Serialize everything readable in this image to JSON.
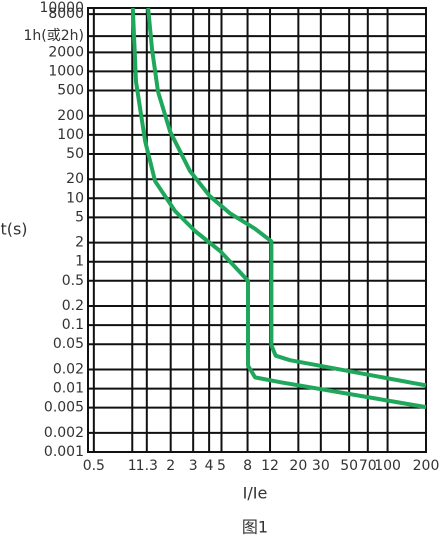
{
  "chart_data": {
    "type": "line",
    "x_label": "I/Ie",
    "y_label": "t(s)",
    "caption": "图1",
    "xscale": "log",
    "yscale": "log",
    "grid": true,
    "xlim": [
      0.45,
      200
    ],
    "ylim": [
      0.001,
      10000
    ],
    "xticks": [
      0.5,
      1,
      1.3,
      2,
      3,
      4,
      5,
      8,
      12,
      20,
      30,
      50,
      70,
      100,
      200
    ],
    "yticks": [
      10000,
      8000,
      {
        "value": 3600,
        "label": "1h(或2h)"
      },
      2000,
      1000,
      500,
      200,
      100,
      50,
      20,
      10,
      5,
      2,
      1,
      0.5,
      0.2,
      0.1,
      0.05,
      0.02,
      0.01,
      0.005,
      0.002,
      0.001
    ],
    "series": [
      {
        "color": "#1fa75b",
        "x": [
          1.01,
          1.07,
          1.26,
          1.51,
          2.16,
          3.1,
          4.87,
          8.07,
          8.07,
          9.16,
          14.4,
          200
        ],
        "values": [
          10000,
          690,
          80,
          18.6,
          6.3,
          3.05,
          1.48,
          0.5,
          0.023,
          0.015,
          0.0126,
          0.0051
        ]
      },
      {
        "color": "#1fa75b",
        "x": [
          1.33,
          1.43,
          1.59,
          1.98,
          2.83,
          4.06,
          5.83,
          9.16,
          12.3,
          12.3,
          13.3,
          17.2,
          200
        ],
        "values": [
          10000,
          2200,
          480,
          113,
          27,
          10.8,
          5.8,
          3.3,
          2.1,
          0.048,
          0.033,
          0.028,
          0.0112
        ]
      }
    ]
  }
}
